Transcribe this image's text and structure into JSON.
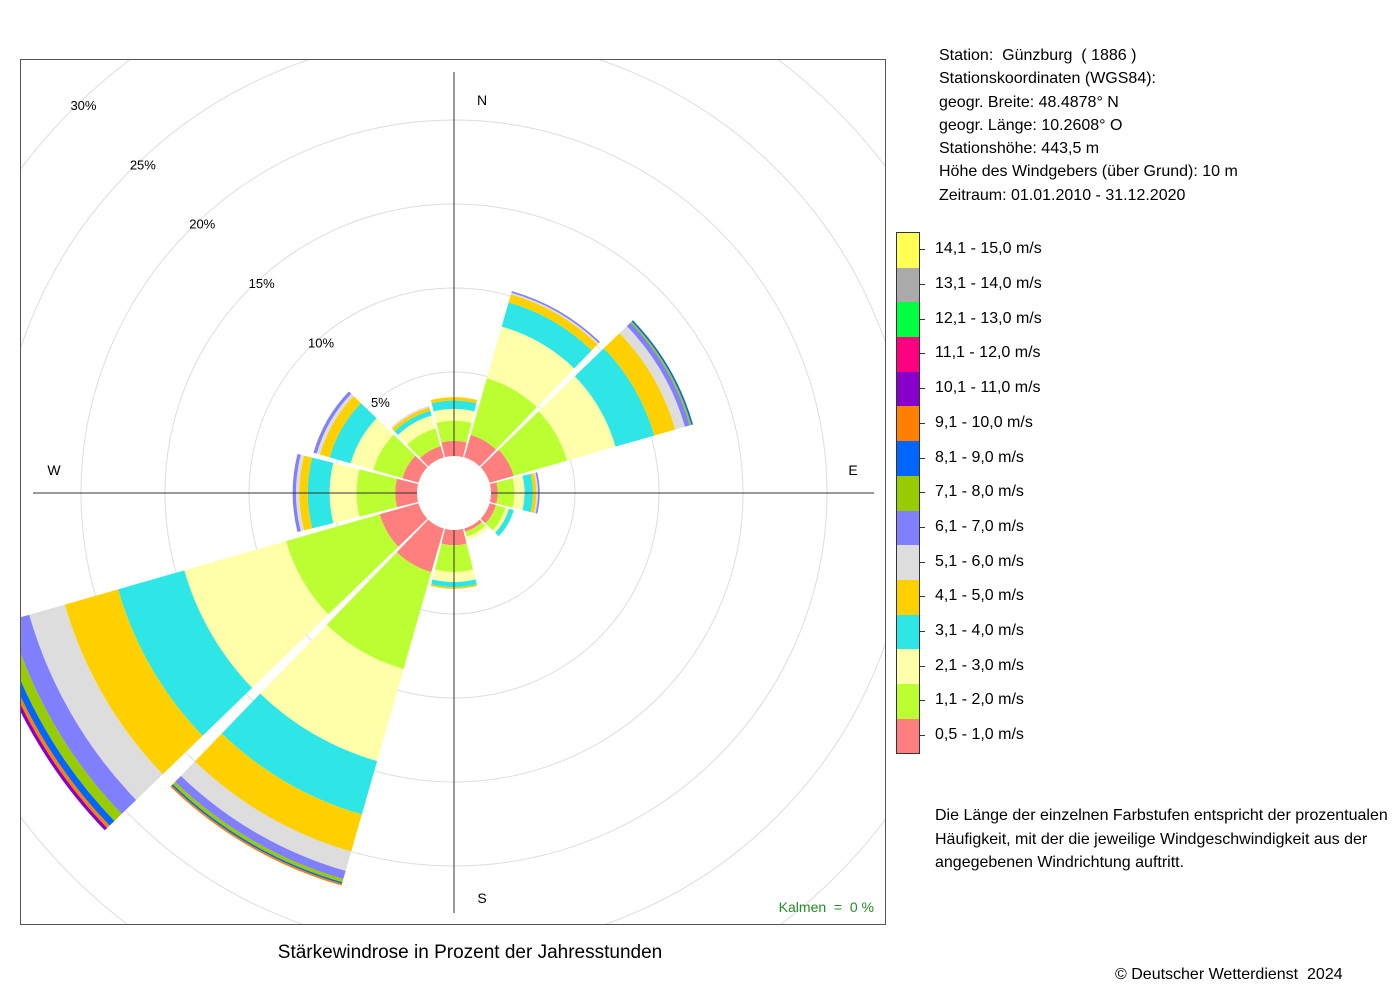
{
  "chart_data": {
    "type": "windrose",
    "title": "Stärkewindrose in Prozent der Jahresstunden",
    "directions": [
      {
        "label": "N",
        "dir": 0
      },
      {
        "label": "S",
        "dir": 180
      },
      {
        "label": "W",
        "dir": 270
      },
      {
        "label": "E",
        "dir": 90
      }
    ],
    "radial_ticks": [
      "5%",
      "10%",
      "15%",
      "20%",
      "25%",
      "30%"
    ],
    "radial_tick_values": [
      5,
      10,
      15,
      20,
      25,
      30
    ],
    "calm_label": "Kalmen  =  0 %",
    "speed_classes": [
      {
        "label": "0,5 - 1,0 m/s",
        "color": "#FF7F7F"
      },
      {
        "label": "1,1 - 2,0 m/s",
        "color": "#BBFF33"
      },
      {
        "label": "2,1 - 3,0 m/s",
        "color": "#FFFFAA"
      },
      {
        "label": "3,1 - 4,0 m/s",
        "color": "#2EE6E6"
      },
      {
        "label": "4,1 - 5,0 m/s",
        "color": "#FFD000"
      },
      {
        "label": "5,1 - 6,0 m/s",
        "color": "#DDDDDD"
      },
      {
        "label": "6,1 - 7,0 m/s",
        "color": "#8080FF"
      },
      {
        "label": "7,1 - 8,0 m/s",
        "color": "#99CC00"
      },
      {
        "label": "8,1 - 9,0 m/s",
        "color": "#0066FF"
      },
      {
        "label": "9,1 - 10,0 m/s",
        "color": "#FF8000"
      },
      {
        "label": "10,1 - 11,0 m/s",
        "color": "#8800CC"
      },
      {
        "label": "11,1 - 12,0 m/s",
        "color": "#FF0080"
      },
      {
        "label": "12,1 - 13,0 m/s",
        "color": "#00FF40"
      },
      {
        "label": "13,1 - 14,0 m/s",
        "color": "#AAAAAA"
      },
      {
        "label": "14,1 - 15,0 m/s",
        "color": "#FFFF55"
      }
    ],
    "sectors": [
      {
        "dir": 0,
        "values": [
          0.9,
          1.2,
          0.7,
          0.5,
          0.2
        ]
      },
      {
        "dir": 30,
        "values": [
          1.4,
          3.5,
          3.2,
          1.5,
          0.5,
          0.1,
          0.1
        ]
      },
      {
        "dir": 60,
        "values": [
          1.5,
          3.3,
          3.0,
          2.4,
          1.3,
          0.6,
          0.3,
          0.1,
          0.1
        ]
      },
      {
        "dir": 90,
        "values": [
          0.4,
          1.0,
          0.6,
          0.5,
          0.2,
          0.1,
          0.1
        ]
      },
      {
        "dir": 120,
        "values": [
          0.4,
          0.6,
          0.2,
          0.3
        ]
      },
      {
        "dir": 150,
        "values": [
          0.2,
          0.3,
          0.2
        ]
      },
      {
        "dir": 180,
        "values": [
          0.9,
          1.6,
          0.6,
          0.3,
          0.1
        ]
      },
      {
        "dir": 210,
        "values": [
          2.7,
          6.0,
          5.7,
          3.3,
          2.3,
          1.2,
          0.5,
          0.2,
          0.1,
          0.1
        ]
      },
      {
        "dir": 240,
        "values": [
          2.4,
          5.8,
          6.3,
          4.1,
          3.3,
          2.2,
          1.2,
          0.6,
          0.4,
          0.2,
          0.2
        ]
      },
      {
        "dir": 270,
        "values": [
          1.3,
          2.3,
          1.6,
          1.3,
          0.5,
          0.2,
          0.2
        ]
      },
      {
        "dir": 300,
        "values": [
          1.0,
          1.8,
          1.4,
          1.3,
          0.6,
          0.2,
          0.2
        ]
      },
      {
        "dir": 330,
        "values": [
          0.7,
          1.1,
          0.8,
          0.3,
          0.2,
          0.1
        ]
      }
    ]
  },
  "station_info": [
    "Station:  Günzburg  ( 1886 )",
    "Stationskoordinaten (WGS84):",
    "geogr. Breite: 48.4878° N",
    "geogr. Länge: 10.2608° O",
    "Stationshöhe: 443,5 m",
    "Höhe des Windgebers (über Grund): 10 m",
    "Zeitraum: 01.01.2010 - 31.12.2020"
  ],
  "note": "Die Länge der einzelnen Farbstufen entspricht der prozentualen Häufigkeit, mit der die jeweilige Windgeschwindigkeit aus der angegebenen Windrichtung auftritt.",
  "copyright": "© Deutscher Wetterdienst  2024"
}
